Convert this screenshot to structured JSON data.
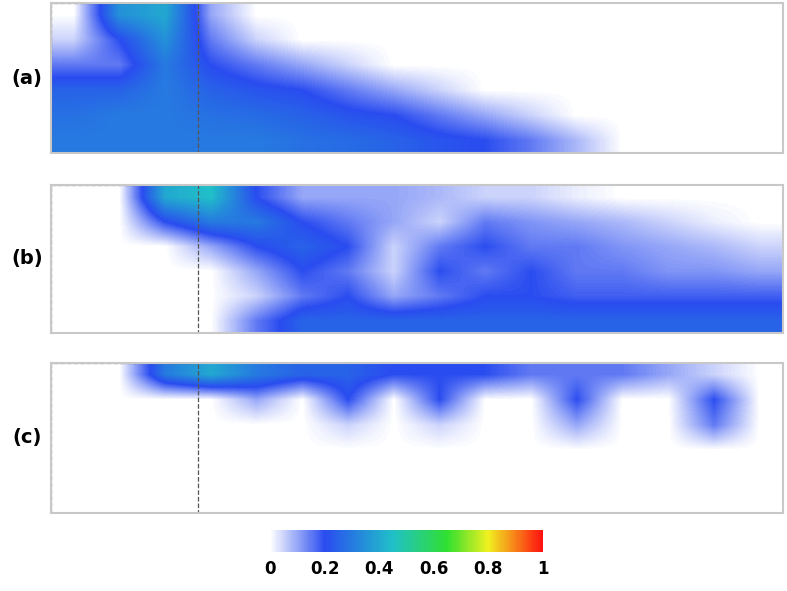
{
  "chart_data": {
    "type": "heatmap",
    "tick_labels": false,
    "panels": [
      {
        "label": "(a)",
        "cells": [
          [
            0,
            0.35,
            0.4,
            0.1,
            0,
            0,
            0,
            0,
            0,
            0,
            0,
            0,
            0,
            0,
            0,
            0
          ],
          [
            0.05,
            0.2,
            0.35,
            0.15,
            0.05,
            0,
            0,
            0,
            0,
            0,
            0,
            0,
            0,
            0,
            0,
            0
          ],
          [
            0.15,
            0.15,
            0.3,
            0.2,
            0.15,
            0.1,
            0.05,
            0,
            0,
            0,
            0,
            0,
            0,
            0,
            0,
            0
          ],
          [
            0.25,
            0.25,
            0.3,
            0.25,
            0.22,
            0.2,
            0.15,
            0.1,
            0.05,
            0,
            0,
            0,
            0,
            0,
            0,
            0
          ],
          [
            0.28,
            0.3,
            0.3,
            0.28,
            0.27,
            0.25,
            0.22,
            0.2,
            0.15,
            0.1,
            0.05,
            0,
            0,
            0,
            0,
            0
          ],
          [
            0.3,
            0.3,
            0.3,
            0.3,
            0.3,
            0.28,
            0.27,
            0.25,
            0.22,
            0.2,
            0.15,
            0.08,
            0,
            0,
            0,
            0
          ]
        ]
      },
      {
        "label": "(b)",
        "cells": [
          [
            0,
            0,
            0.4,
            0.45,
            0.2,
            0.1,
            0.1,
            0.1,
            0.08,
            0.05,
            0.05,
            0.02,
            0,
            0,
            0,
            0
          ],
          [
            0,
            0,
            0.2,
            0.3,
            0.3,
            0.2,
            0.15,
            0.1,
            0.05,
            0.15,
            0.12,
            0.1,
            0.08,
            0.05,
            0.02,
            0
          ],
          [
            0,
            0,
            0,
            0.1,
            0.2,
            0.25,
            0.2,
            0.05,
            0.15,
            0.2,
            0.15,
            0.15,
            0.12,
            0.1,
            0.08,
            0.05
          ],
          [
            0,
            0,
            0,
            0,
            0.1,
            0.2,
            0.15,
            0.05,
            0.2,
            0.15,
            0.2,
            0.15,
            0.15,
            0.12,
            0.12,
            0.1
          ],
          [
            0,
            0,
            0,
            0,
            0.05,
            0.15,
            0.2,
            0.1,
            0.15,
            0.2,
            0.2,
            0.18,
            0.18,
            0.18,
            0.18,
            0.18
          ],
          [
            0,
            0,
            0,
            0,
            0.15,
            0.25,
            0.25,
            0.25,
            0.25,
            0.25,
            0.25,
            0.25,
            0.25,
            0.25,
            0.25,
            0.25
          ]
        ]
      },
      {
        "label": "(c)",
        "cells": [
          [
            0,
            0,
            0.3,
            0.4,
            0.3,
            0.25,
            0.25,
            0.2,
            0.2,
            0.2,
            0.15,
            0.15,
            0.15,
            0.1,
            0.05,
            0
          ],
          [
            0,
            0,
            0,
            0,
            0.1,
            0,
            0.2,
            0,
            0.2,
            0,
            0,
            0.2,
            0,
            0,
            0.2,
            0
          ],
          [
            0,
            0,
            0,
            0,
            0,
            0,
            0.05,
            0,
            0.05,
            0,
            0,
            0.1,
            0,
            0,
            0.15,
            0
          ],
          [
            0,
            0,
            0,
            0,
            0,
            0,
            0,
            0,
            0,
            0,
            0,
            0,
            0,
            0,
            0,
            0
          ],
          [
            0,
            0,
            0,
            0,
            0,
            0,
            0,
            0,
            0,
            0,
            0,
            0,
            0,
            0,
            0,
            0
          ],
          [
            0,
            0,
            0,
            0,
            0,
            0,
            0,
            0,
            0,
            0,
            0,
            0,
            0,
            0,
            0,
            0
          ]
        ]
      }
    ],
    "colorbar": {
      "range": [
        0,
        1
      ],
      "ticks": [
        0,
        0.2,
        0.4,
        0.6,
        0.8,
        1
      ]
    }
  }
}
